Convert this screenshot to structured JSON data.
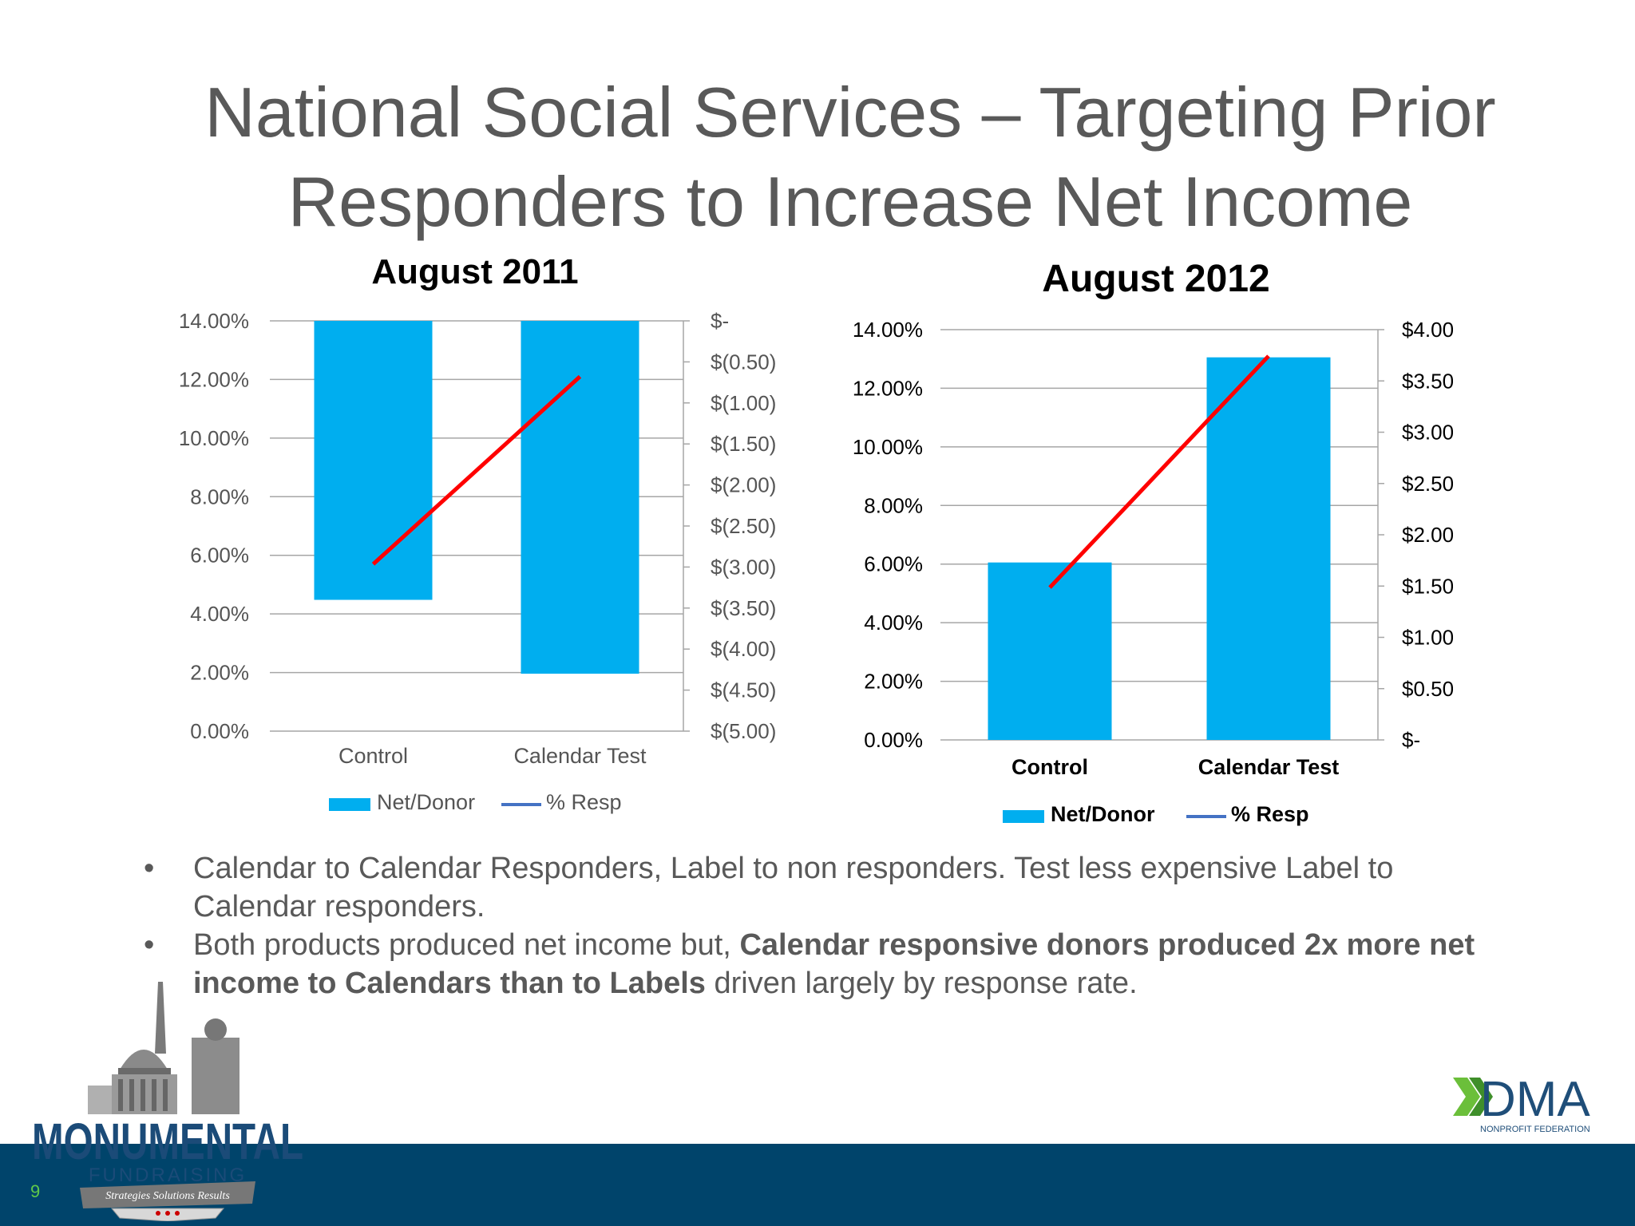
{
  "slide": {
    "title_line1": "National Social Services – Targeting Prior",
    "title_line2": "Responders to Increase Net Income",
    "page_number": "9"
  },
  "bullets": [
    {
      "text": "Calendar to Calendar Responders, Label to non responders.  Test less expensive Label to Calendar responders."
    },
    {
      "text_before": "Both products produced net income but, ",
      "text_bold": "Calendar responsive donors produced 2x more net income to Calendars than to Labels",
      "text_after": " driven largely by response rate."
    }
  ],
  "bullet_symbol": "•",
  "logos": {
    "left": {
      "brand": "MONUMENTAL",
      "sub": "FUNDRAISING",
      "ribbon": "Strategies  Solutions  Results"
    },
    "right": {
      "brand": "DMA",
      "sub": "NONPROFIT FEDERATION"
    }
  },
  "colors": {
    "bar": "#00aeef",
    "line": "#ff0000",
    "footer": "#00446b",
    "legend_line": "#4472c4"
  },
  "chart_data": [
    {
      "type": "bar",
      "title": "August 2011",
      "categories": [
        "Control",
        "Calendar Test"
      ],
      "series": [
        {
          "name": "Net/Donor",
          "axis": "right",
          "values": [
            -3.4,
            -4.3
          ]
        },
        {
          "name": "% Resp",
          "type": "line",
          "axis": "left",
          "values": [
            5.7,
            12.1
          ]
        }
      ],
      "y_left_ticks": [
        "0.00%",
        "2.00%",
        "4.00%",
        "6.00%",
        "8.00%",
        "10.00%",
        "12.00%",
        "14.00%"
      ],
      "y_left_range": [
        0,
        14
      ],
      "y_right_ticks": [
        "$(5.00)",
        "$(4.50)",
        "$(4.00)",
        "$(3.50)",
        "$(3.00)",
        "$(2.50)",
        "$(2.00)",
        "$(1.50)",
        "$(1.00)",
        "$(0.50)",
        "$-"
      ],
      "y_right_range": [
        -5,
        0
      ],
      "legend": "bottom",
      "grid": true
    },
    {
      "type": "bar",
      "title": "August 2012",
      "categories": [
        "Control",
        "Calendar Test"
      ],
      "series": [
        {
          "name": "Net/Donor",
          "axis": "right",
          "values": [
            1.73,
            3.73
          ]
        },
        {
          "name": "% Resp",
          "type": "line",
          "axis": "left",
          "values": [
            5.2,
            13.1
          ]
        }
      ],
      "y_left_ticks": [
        "0.00%",
        "2.00%",
        "4.00%",
        "6.00%",
        "8.00%",
        "10.00%",
        "12.00%",
        "14.00%"
      ],
      "y_left_range": [
        0,
        14
      ],
      "y_right_ticks": [
        "$-",
        "$0.50",
        "$1.00",
        "$1.50",
        "$2.00",
        "$2.50",
        "$3.00",
        "$3.50",
        "$4.00"
      ],
      "y_right_range": [
        0,
        4
      ],
      "legend": "bottom",
      "grid": true
    }
  ]
}
